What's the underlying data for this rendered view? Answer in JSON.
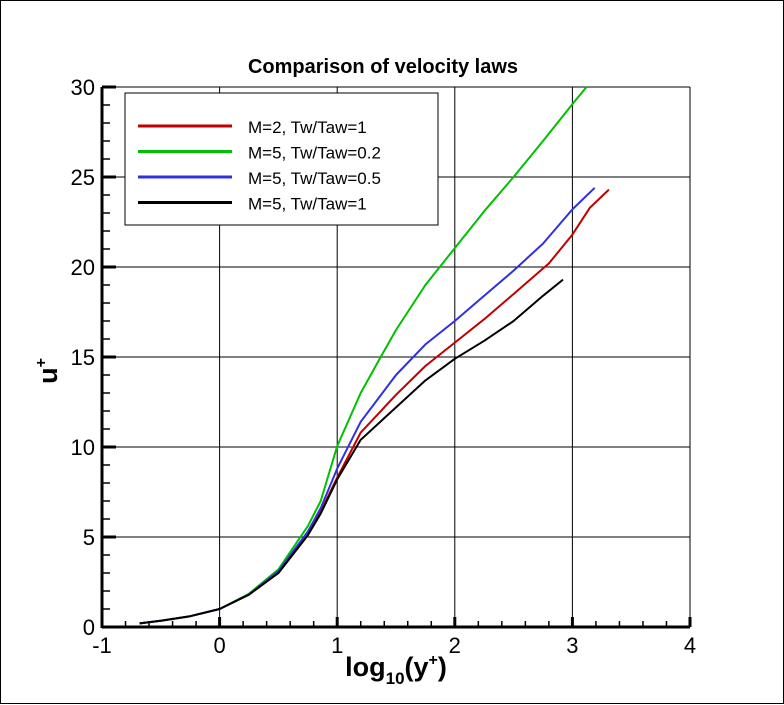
{
  "chart_data": {
    "type": "line",
    "title": "Comparison of velocity laws",
    "xlabel": "log10(y+)",
    "xlabel_parts": {
      "base": "log",
      "sub": "10",
      "open": "(y",
      "sup": "+",
      "close": ")"
    },
    "ylabel": "u+",
    "ylabel_parts": {
      "base": "u",
      "sup": "+"
    },
    "xlim": [
      -1,
      4
    ],
    "ylim": [
      0,
      30
    ],
    "xticks": [
      -1,
      0,
      1,
      2,
      3,
      4
    ],
    "yticks": [
      0,
      5,
      10,
      15,
      20,
      25,
      30
    ],
    "grid": true,
    "legend_position": "top-left",
    "series": [
      {
        "name": "M=2, Tw/Taw=1",
        "color": "#c00000",
        "x": [
          -0.68,
          -0.5,
          -0.25,
          0,
          0.25,
          0.5,
          0.75,
          0.86,
          1.0,
          1.2,
          1.5,
          1.75,
          2.0,
          2.25,
          2.5,
          2.8,
          3.0,
          3.15,
          3.31
        ],
        "y": [
          0.2,
          0.35,
          0.6,
          1.0,
          1.8,
          3.0,
          5.1,
          6.4,
          8.3,
          10.8,
          12.9,
          14.5,
          15.8,
          17.1,
          18.5,
          20.2,
          21.8,
          23.3,
          24.3
        ]
      },
      {
        "name": "M=5, Tw/Taw=0.2",
        "color": "#00c000",
        "x": [
          -0.68,
          -0.5,
          -0.25,
          0,
          0.25,
          0.5,
          0.75,
          0.86,
          1.0,
          1.2,
          1.37,
          1.5,
          1.75,
          2.0,
          2.25,
          2.5,
          2.75,
          3.0,
          3.12
        ],
        "y": [
          0.2,
          0.35,
          0.6,
          1.0,
          1.85,
          3.2,
          5.6,
          7.0,
          10.05,
          13.0,
          15.0,
          16.5,
          19.0,
          21.05,
          23.1,
          25.0,
          27.0,
          29.05,
          30.0
        ]
      },
      {
        "name": "M=5, Tw/Taw=0.5",
        "color": "#3030e0",
        "x": [
          -0.68,
          -0.5,
          -0.25,
          0,
          0.25,
          0.5,
          0.75,
          0.86,
          1.0,
          1.2,
          1.5,
          1.75,
          2.0,
          2.25,
          2.5,
          2.75,
          3.0,
          3.19
        ],
        "y": [
          0.2,
          0.35,
          0.6,
          1.0,
          1.8,
          3.1,
          5.3,
          6.6,
          8.8,
          11.4,
          14.0,
          15.7,
          17.0,
          18.4,
          19.8,
          21.3,
          23.2,
          24.4
        ]
      },
      {
        "name": "M=5, Tw/Taw=1",
        "color": "#000000",
        "x": [
          -0.68,
          -0.5,
          -0.25,
          0,
          0.25,
          0.5,
          0.75,
          0.86,
          1.0,
          1.2,
          1.5,
          1.75,
          2.0,
          2.25,
          2.5,
          2.75,
          2.92
        ],
        "y": [
          0.2,
          0.35,
          0.6,
          1.0,
          1.8,
          3.0,
          5.1,
          6.3,
          8.2,
          10.4,
          12.2,
          13.7,
          14.9,
          15.9,
          17.0,
          18.4,
          19.3
        ]
      }
    ]
  }
}
